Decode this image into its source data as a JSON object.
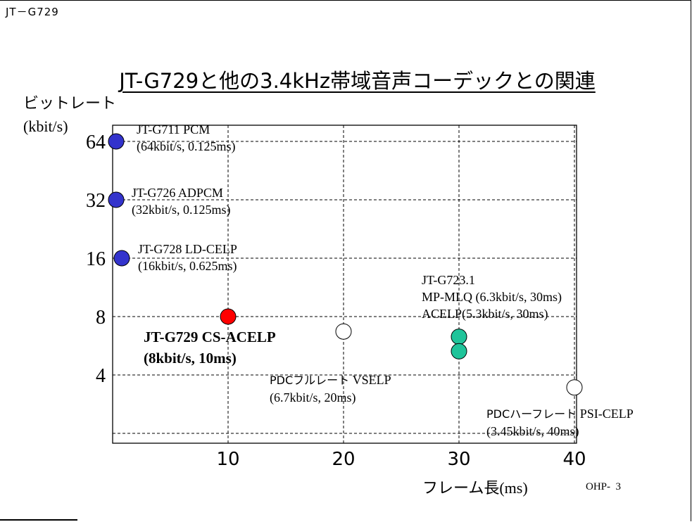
{
  "header": {
    "doc_code": "JT－G729"
  },
  "footer": {
    "page_label": "OHP-",
    "page_number": "3"
  },
  "chart_data": {
    "type": "scatter",
    "title": "JT-G729と他の3.4kHz帯域音声コーデックとの関連",
    "ylabel": "ビットレート",
    "yunit": "(kbit/s)",
    "xlabel": "フレーム長",
    "xunit": "(ms)",
    "x_ticks": [
      "10",
      "20",
      "30",
      "40"
    ],
    "y_ticks": [
      "64",
      "32",
      "16",
      "8",
      "4"
    ],
    "grid": true,
    "points": [
      {
        "name": "JT-G711 PCM",
        "detail": "(64kbit/s, 0.125ms)",
        "x": 0.125,
        "y": 64,
        "color": "#3333cc"
      },
      {
        "name": "JT-G726 ADPCM",
        "detail": "(32kbit/s, 0.125ms)",
        "x": 0.125,
        "y": 32,
        "color": "#3333cc"
      },
      {
        "name": "JT-G728 LD-CELP",
        "detail": "(16kbit/s, 0.625ms)",
        "x": 0.625,
        "y": 16,
        "color": "#3333cc"
      },
      {
        "name": "JT-G729 CS-ACELP",
        "detail": "(8kbit/s, 10ms)",
        "x": 10,
        "y": 8,
        "color": "#ff0000"
      },
      {
        "name": "PDCフルレート VSELP",
        "detail": "(6.7kbit/s, 20ms)",
        "x": 20,
        "y": 6.7,
        "color": "#ffffff"
      },
      {
        "name": "JT-G723.1 MP-MLQ",
        "detail": "(6.3kbit/s, 30ms)",
        "x": 30,
        "y": 6.3,
        "color": "#1fc49a"
      },
      {
        "name": "JT-G723.1 ACELP",
        "detail": "(5.3kbit/s, 30ms)",
        "x": 30,
        "y": 5.3,
        "color": "#1fc49a"
      },
      {
        "name": "PDCハーフレート PSI-CELP",
        "detail": "(3.45kbit/s, 40ms)",
        "x": 40,
        "y": 3.45,
        "color": "#ffffff"
      }
    ]
  },
  "annotations": {
    "g711_name": "JT-G711 PCM",
    "g711_detail": "(64kbit/s, 0.125ms)",
    "g726_name": "JT-G726 ADPCM",
    "g726_detail": "(32kbit/s, 0.125ms)",
    "g728_name": "JT-G728 LD-CELP",
    "g728_detail": "(16kbit/s, 0.625ms)",
    "g729_name": "JT-G729 CS-ACELP",
    "g729_detail": "(8kbit/s, 10ms)",
    "g7231_name": "JT-G723.1",
    "g7231_mpmlq": "MP-MLQ (6.3kbit/s, 30ms)",
    "g7231_acelp": "ACELP(5.3kbit/s, 30ms)",
    "pdc_full_name_jp": "PDCフルレート",
    "pdc_full_name_en": " VSELP",
    "pdc_full_detail": "(6.7kbit/s, 20ms)",
    "pdc_half_name_jp": "PDCハーフレート",
    "pdc_half_name_en": " PSI-CELP",
    "pdc_half_detail": "(3.45kbit/s, 40ms)"
  }
}
